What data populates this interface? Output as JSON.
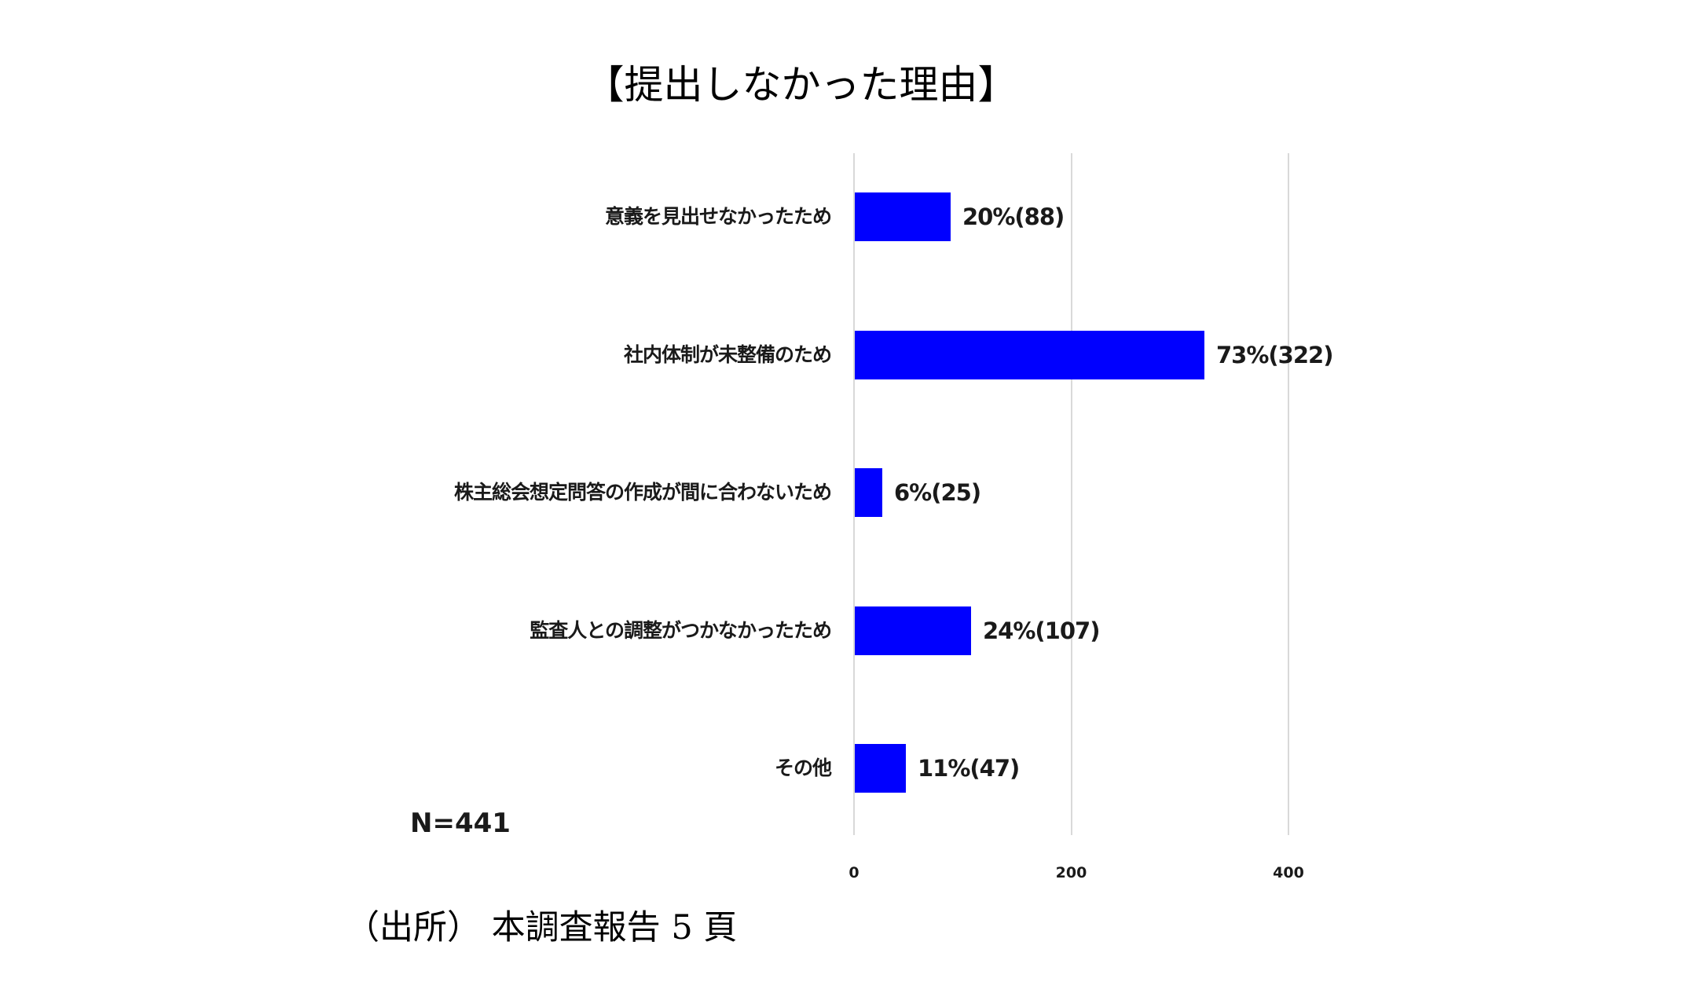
{
  "title": "【提出しなかった理由】",
  "sample_size_label": "N=441",
  "source_note": "（出所） 本調査報告 5 頁",
  "colors": {
    "bar": "#0000ff",
    "grid": "#d9d9d9",
    "text": "#1a1a1a"
  },
  "axis": {
    "ticks": [
      {
        "value": 0,
        "label": "0"
      },
      {
        "value": 200,
        "label": "200"
      },
      {
        "value": 400,
        "label": "400"
      }
    ]
  },
  "bars": [
    {
      "category": "意義を見出せなかったため",
      "value": 88,
      "label": "20%(88)"
    },
    {
      "category": "社内体制が未整備のため",
      "value": 322,
      "label": "73%(322)"
    },
    {
      "category": "株主総会想定問答の作成が間に合わないため",
      "value": 25,
      "label": "6%(25)"
    },
    {
      "category": "監査人との調整がつかなかったため",
      "value": 107,
      "label": "24%(107)"
    },
    {
      "category": "その他",
      "value": 47,
      "label": "11%(47)"
    }
  ],
  "chart_data": {
    "type": "bar",
    "orientation": "horizontal",
    "title": "【提出しなかった理由】",
    "categories": [
      "意義を見出せなかったため",
      "社内体制が未整備のため",
      "株主総会想定問答の作成が間に合わないため",
      "監査人との調整がつかなかったため",
      "その他"
    ],
    "values": [
      88,
      322,
      25,
      107,
      47
    ],
    "percentages": [
      20,
      73,
      6,
      24,
      11
    ],
    "data_labels": [
      "20%(88)",
      "73%(322)",
      "6%(25)",
      "24%(107)",
      "11%(47)"
    ],
    "xlabel": "",
    "ylabel": "",
    "xlim": [
      0,
      400
    ],
    "xticks": [
      0,
      200,
      400
    ],
    "grid": true,
    "legend": null,
    "annotations": [
      "N=441"
    ],
    "source": "（出所） 本調査報告 5 頁"
  }
}
